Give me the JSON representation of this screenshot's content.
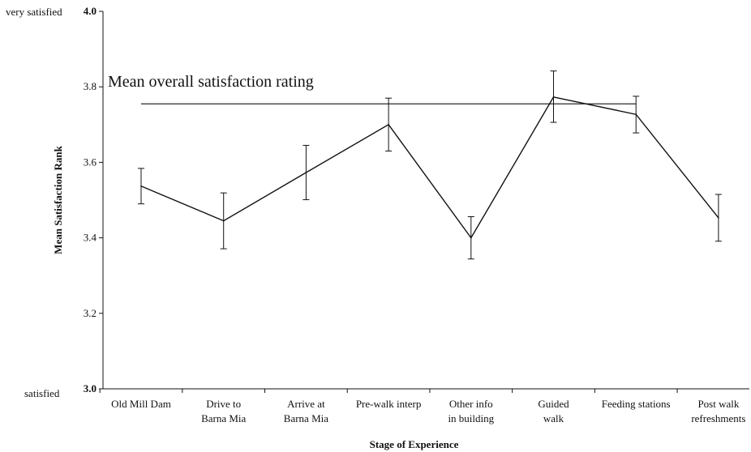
{
  "chart_data": {
    "type": "line",
    "xlabel": "Stage of Experience",
    "ylabel": "Mean Satisfaction Rank",
    "ylim": [
      3.0,
      4.0
    ],
    "yticks": [
      "3.0",
      "3.2",
      "3.4",
      "3.6",
      "3.8",
      "4.0"
    ],
    "y_extreme_labels": {
      "top": "very satisfied",
      "bottom": "satisfied"
    },
    "categories": [
      [
        "Old Mill Dam"
      ],
      [
        "Drive to",
        "Barna Mia"
      ],
      [
        "Arrive at",
        "Barna Mia"
      ],
      [
        "Pre-walk interp"
      ],
      [
        "Other info",
        "in building"
      ],
      [
        "Guided",
        "walk"
      ],
      [
        "Feeding stations"
      ],
      [
        "Post walk",
        "refreshments"
      ]
    ],
    "series": [
      {
        "values": [
          3.537,
          3.445,
          3.573,
          3.7,
          3.4,
          3.773,
          3.727,
          3.453
        ],
        "error_low": [
          3.49,
          3.371,
          3.501,
          3.63,
          3.344,
          3.706,
          3.678,
          3.391
        ],
        "error_high": [
          3.584,
          3.519,
          3.645,
          3.77,
          3.456,
          3.842,
          3.775,
          3.515
        ]
      }
    ],
    "reference_line": {
      "label": "Mean overall satisfaction rating",
      "value": 3.755,
      "x_start": "Old Mill Dam",
      "x_end": "Feeding stations"
    },
    "grid": false,
    "legend": "none"
  }
}
